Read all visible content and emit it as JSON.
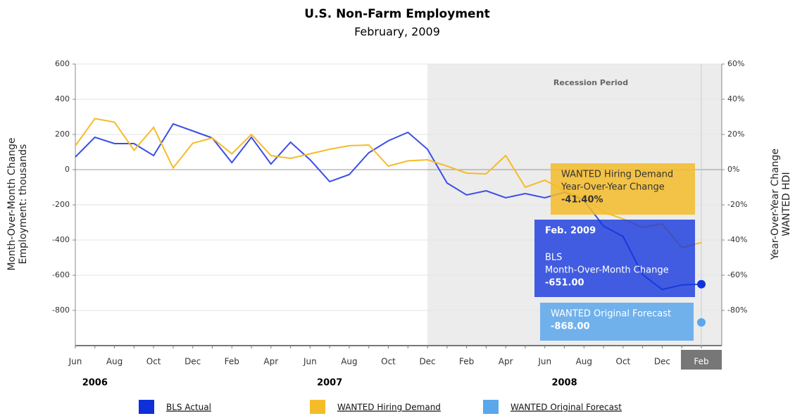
{
  "chart_data": {
    "type": "line",
    "title": "U.S. Non-Farm Employment",
    "subtitle": "February, 2009",
    "y_axis_label": [
      "Month-Over-Month Change",
      "Employment: thousands"
    ],
    "y2_axis_label": [
      "Year-Over-Year Change",
      "WANTED HDI"
    ],
    "categories": [
      "Jun",
      null,
      "Aug",
      null,
      "Oct",
      null,
      "Dec",
      null,
      "Feb",
      null,
      "Apr",
      null,
      "Jun",
      null,
      "Aug",
      null,
      "Oct",
      null,
      "Dec",
      null,
      "Feb",
      null,
      "Apr",
      null,
      "Jun",
      null,
      "Aug",
      null,
      "Oct",
      null,
      "Dec",
      null,
      "Feb"
    ],
    "year_labels": [
      "2006",
      "2007",
      "2008"
    ],
    "annotation": "Recession Period",
    "ylim": [
      -1000,
      600
    ],
    "yticks": [
      600,
      400,
      200,
      0,
      -200,
      -400,
      -600,
      -800
    ],
    "y2lim": [
      -100,
      60
    ],
    "y2ticks": [
      {
        "value": 60,
        "label": "60%"
      },
      {
        "value": 40,
        "label": "40%"
      },
      {
        "value": 20,
        "label": "20%"
      },
      {
        "value": 0,
        "label": "0%"
      },
      {
        "value": -20,
        "label": "-20%"
      },
      {
        "value": -40,
        "label": "-40%"
      },
      {
        "value": -60,
        "label": "-60%"
      },
      {
        "value": -80,
        "label": "-80%"
      }
    ],
    "grid": true,
    "series": [
      {
        "name": "BLS Actual",
        "color": "#3a4ee8",
        "legend_color": "#0f2fd8",
        "values": [
          72,
          184,
          148,
          148,
          80,
          260,
          220,
          180,
          40,
          184,
          32,
          156,
          56,
          -68,
          -28,
          96,
          164,
          212,
          116,
          -76,
          -144,
          -120,
          -160,
          -136,
          -160,
          -128,
          -175,
          -321,
          -380,
          -597,
          -681,
          -655,
          -651
        ]
      },
      {
        "name": "WANTED Hiring Demand",
        "color": "#f5bc2a",
        "legend_color": "#f5bc2a",
        "axis": "y2",
        "values": [
          13.6,
          29,
          27,
          11,
          24,
          1,
          15,
          18,
          9,
          20,
          8,
          6.4,
          9,
          11.6,
          13.6,
          14,
          2,
          5,
          5.6,
          2,
          -2,
          -2.4,
          8,
          -10,
          -6,
          -12,
          -16,
          -24,
          -28,
          -32.8,
          -30.8,
          -44.4,
          -41.4
        ]
      },
      {
        "name": "WANTED Original Forecast",
        "color": "#5aa7ec",
        "legend_color": "#5aa7ec",
        "values": [
          null,
          null,
          null,
          null,
          null,
          null,
          null,
          null,
          null,
          null,
          null,
          null,
          null,
          null,
          null,
          null,
          null,
          null,
          null,
          null,
          null,
          null,
          null,
          null,
          null,
          null,
          null,
          null,
          null,
          null,
          null,
          null,
          -868
        ]
      }
    ],
    "tooltips": [
      {
        "lines": [
          "WANTED Hiring Demand",
          "Year-Over-Year Change"
        ],
        "value": "-41.40%"
      },
      {
        "header": "Feb. 2009",
        "lines": [
          "BLS",
          "Month-Over-Month Change"
        ],
        "value": "-651.00"
      },
      {
        "lines": [
          "WANTED Original Forecast"
        ],
        "value": "-868.00"
      }
    ]
  }
}
